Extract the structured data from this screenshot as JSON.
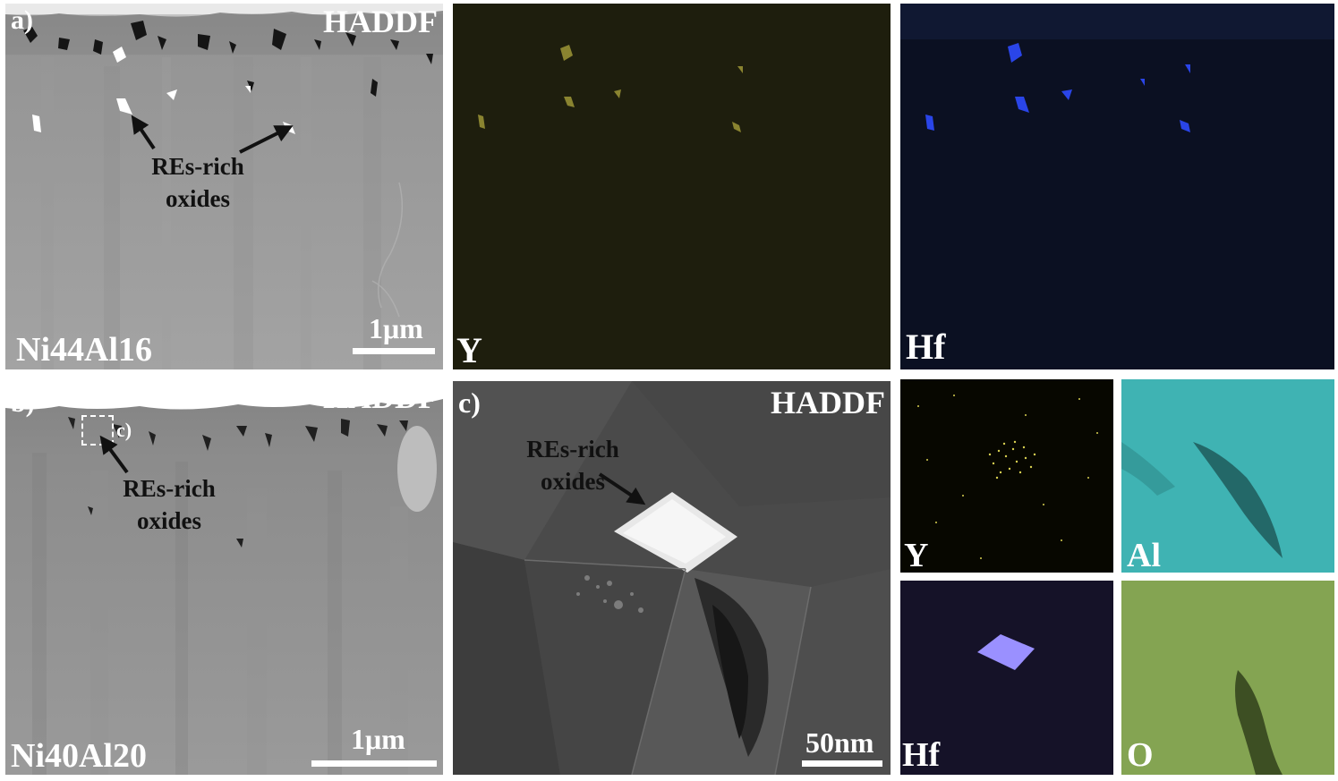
{
  "figure": {
    "panel_a": {
      "letter": "a)",
      "mode": "HADDF",
      "sample": "Ni44Al16",
      "scale": "1μm",
      "annotation_line1": "REs-rich",
      "annotation_line2": "oxides"
    },
    "map_y_top": {
      "element": "Y",
      "color": "#c8c040"
    },
    "map_hf_top": {
      "element": "Hf",
      "color": "#2a4cff"
    },
    "panel_b": {
      "letter": "b)",
      "mode": "HADDF",
      "sample": "Ni40Al20",
      "scale": "1μm",
      "inset_ref": "c)",
      "annotation_line1": "REs-rich",
      "annotation_line2": "oxides"
    },
    "panel_c": {
      "letter": "c)",
      "mode": "HADDF",
      "scale": "50nm",
      "annotation_line1": "REs-rich",
      "annotation_line2": "oxides"
    },
    "maps_small": {
      "y": {
        "element": "Y",
        "color": "#d8d050"
      },
      "al": {
        "element": "Al",
        "color": "#3fb6b6"
      },
      "hf": {
        "element": "Hf",
        "color": "#9a90ff"
      },
      "o": {
        "element": "O",
        "color": "#86a654"
      }
    }
  }
}
